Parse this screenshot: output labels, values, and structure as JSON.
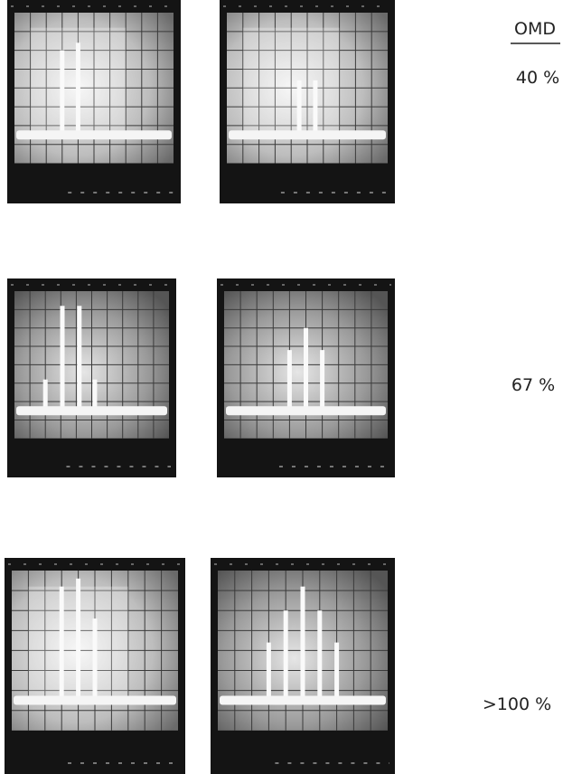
{
  "header": {
    "title": "OMD"
  },
  "rows": [
    {
      "label": "40 %"
    },
    {
      "label": "67 %"
    },
    {
      "label": ">100 %"
    }
  ]
}
